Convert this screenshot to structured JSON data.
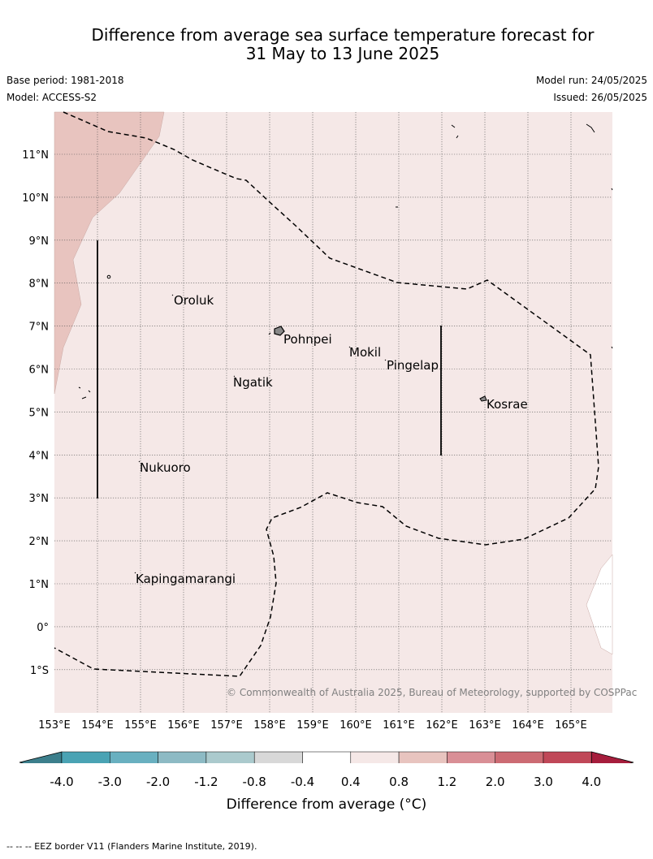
{
  "title": {
    "line1": "Difference from average sea surface temperature forecast for",
    "line2": "31 May to 13 June 2025"
  },
  "meta": {
    "base_period": "Base period: 1981-2018",
    "model": "Model: ACCESS-S2",
    "model_run": "Model run: 24/05/2025",
    "issued": "Issued: 26/05/2025"
  },
  "map": {
    "lon_labels": [
      "153°E",
      "154°E",
      "155°E",
      "156°E",
      "157°E",
      "158°E",
      "159°E",
      "160°E",
      "161°E",
      "162°E",
      "163°E",
      "164°E",
      "165°E"
    ],
    "lat_labels": [
      "11°N",
      "10°N",
      "9°N",
      "8°N",
      "7°N",
      "6°N",
      "5°N",
      "4°N",
      "3°N",
      "2°N",
      "1°N",
      "0°",
      "1°S"
    ],
    "places": [
      {
        "name": "Oroluk"
      },
      {
        "name": "Pohnpei"
      },
      {
        "name": "Mokil"
      },
      {
        "name": "Pingelap"
      },
      {
        "name": "Ngatik"
      },
      {
        "name": "Kosrae"
      },
      {
        "name": "Nukuoro"
      },
      {
        "name": "Kapingamarangi"
      }
    ],
    "anomaly_background": "0.4 to 0.8",
    "anomaly_northwest": "0.8 to 1.2",
    "copyright": "© Commonwealth of Australia 2025, Bureau of Meteorology, supported by COSPPac"
  },
  "colorbar": {
    "labels": [
      "-4.0",
      "-3.0",
      "-2.0",
      "-1.2",
      "-0.8",
      "-0.4",
      "0.4",
      "0.8",
      "1.2",
      "2.0",
      "3.0",
      "4.0"
    ],
    "colors": [
      "#3c7f8c",
      "#4aa3b4",
      "#69b0c0",
      "#8dbac4",
      "#abcacd",
      "#d8d8d8",
      "#ffffff",
      "#f5e8e7",
      "#e8c4bf",
      "#d98f96",
      "#cc6b73",
      "#c04858",
      "#a61d3c"
    ],
    "title": "Difference from average (°C)"
  },
  "footnote": "--  --  -- EEZ border V11 (Flanders Marine Institute, 2019)."
}
